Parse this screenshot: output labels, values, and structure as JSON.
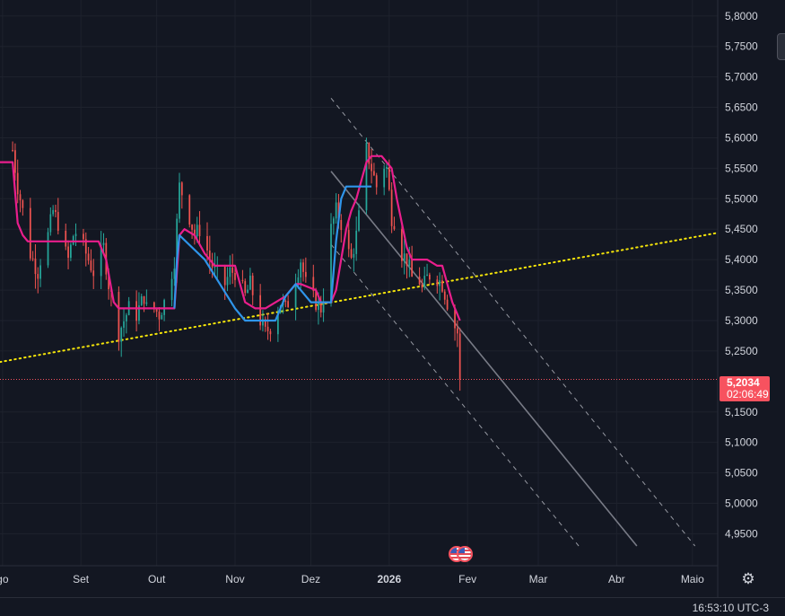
{
  "chart_data": {
    "type": "candlestick",
    "title": "",
    "y_axis_ticks": [
      "5,8000",
      "5,7500",
      "5,7000",
      "5,6500",
      "5,6000",
      "5,5500",
      "5,5000",
      "5,4500",
      "5,4000",
      "5,3500",
      "5,3000",
      "5,2500",
      "5,1500",
      "5,1000",
      "5,0500",
      "5,0000",
      "4,9500"
    ],
    "ylim": [
      4.93,
      5.81
    ],
    "x_axis_ticks": [
      {
        "label": "go",
        "day": -4
      },
      {
        "label": "Set",
        "day": 27
      },
      {
        "label": "Out",
        "day": 57
      },
      {
        "label": "Nov",
        "day": 88
      },
      {
        "label": "Dez",
        "day": 118
      },
      {
        "label": "2026",
        "day": 149
      },
      {
        "label": "Fev",
        "day": 180
      },
      {
        "label": "Mar",
        "day": 208
      },
      {
        "label": "Abr",
        "day": 239
      },
      {
        "label": "Maio",
        "day": 269
      }
    ],
    "xlim": [
      -5,
      279
    ],
    "current_price": {
      "value": 5.2034,
      "label": "5,2034",
      "countdown": "02:06:49"
    },
    "close_points": [
      [
        0,
        5.58
      ],
      [
        2,
        5.52
      ],
      [
        4,
        5.48
      ],
      [
        6,
        5.42
      ],
      [
        8,
        5.4
      ],
      [
        10,
        5.38
      ],
      [
        12,
        5.42
      ],
      [
        14,
        5.44
      ],
      [
        16,
        5.48
      ],
      [
        18,
        5.46
      ],
      [
        20,
        5.42
      ],
      [
        22,
        5.4
      ],
      [
        24,
        5.44
      ],
      [
        26,
        5.45
      ],
      [
        28,
        5.42
      ],
      [
        30,
        5.4
      ],
      [
        32,
        5.38
      ],
      [
        34,
        5.4
      ],
      [
        36,
        5.42
      ],
      [
        38,
        5.36
      ],
      [
        40,
        5.32
      ],
      [
        42,
        5.28
      ],
      [
        44,
        5.3
      ],
      [
        46,
        5.32
      ],
      [
        48,
        5.3
      ],
      [
        50,
        5.32
      ],
      [
        52,
        5.34
      ],
      [
        54,
        5.3
      ],
      [
        56,
        5.32
      ],
      [
        58,
        5.31
      ],
      [
        60,
        5.33
      ],
      [
        62,
        5.36
      ],
      [
        64,
        5.4
      ],
      [
        66,
        5.52
      ],
      [
        68,
        5.5
      ],
      [
        70,
        5.47
      ],
      [
        72,
        5.44
      ],
      [
        74,
        5.45
      ],
      [
        76,
        5.43
      ],
      [
        78,
        5.4
      ],
      [
        80,
        5.38
      ],
      [
        82,
        5.37
      ],
      [
        84,
        5.36
      ],
      [
        86,
        5.38
      ],
      [
        88,
        5.38
      ],
      [
        90,
        5.36
      ],
      [
        92,
        5.34
      ],
      [
        94,
        5.36
      ],
      [
        96,
        5.33
      ],
      [
        98,
        5.3
      ],
      [
        100,
        5.28
      ],
      [
        102,
        5.29
      ],
      [
        104,
        5.31
      ],
      [
        106,
        5.33
      ],
      [
        108,
        5.32
      ],
      [
        110,
        5.34
      ],
      [
        112,
        5.37
      ],
      [
        114,
        5.4
      ],
      [
        116,
        5.36
      ],
      [
        118,
        5.34
      ],
      [
        120,
        5.33
      ],
      [
        122,
        5.32
      ],
      [
        124,
        5.36
      ],
      [
        126,
        5.45
      ],
      [
        128,
        5.48
      ],
      [
        130,
        5.46
      ],
      [
        132,
        5.42
      ],
      [
        134,
        5.4
      ],
      [
        136,
        5.44
      ],
      [
        138,
        5.5
      ],
      [
        140,
        5.58
      ],
      [
        142,
        5.55
      ],
      [
        144,
        5.52
      ],
      [
        146,
        5.56
      ],
      [
        148,
        5.55
      ],
      [
        150,
        5.47
      ],
      [
        152,
        5.46
      ],
      [
        154,
        5.41
      ],
      [
        156,
        5.4
      ],
      [
        158,
        5.37
      ],
      [
        160,
        5.38
      ],
      [
        162,
        5.35
      ],
      [
        164,
        5.37
      ],
      [
        166,
        5.38
      ],
      [
        168,
        5.37
      ],
      [
        170,
        5.36
      ],
      [
        172,
        5.33
      ],
      [
        174,
        5.3
      ],
      [
        176,
        5.28
      ],
      [
        177,
        5.2034
      ]
    ],
    "series": [
      {
        "name": "",
        "color": "#e91e8c",
        "role": "trailing-stop-upper",
        "points": [
          [
            -5,
            5.56
          ],
          [
            0,
            5.56
          ],
          [
            2,
            5.46
          ],
          [
            4,
            5.44
          ],
          [
            6,
            5.43
          ],
          [
            10,
            5.43
          ],
          [
            26,
            5.43
          ],
          [
            34,
            5.43
          ],
          [
            37,
            5.4
          ],
          [
            40,
            5.33
          ],
          [
            42,
            5.32
          ],
          [
            60,
            5.32
          ],
          [
            64,
            5.32
          ],
          [
            66,
            5.44
          ],
          [
            68,
            5.45
          ],
          [
            72,
            5.44
          ],
          [
            76,
            5.41
          ],
          [
            80,
            5.39
          ],
          [
            88,
            5.39
          ],
          [
            90,
            5.36
          ],
          [
            92,
            5.33
          ],
          [
            96,
            5.32
          ],
          [
            100,
            5.32
          ],
          [
            108,
            5.34
          ],
          [
            112,
            5.36
          ],
          [
            114,
            5.36
          ],
          [
            120,
            5.35
          ],
          [
            122,
            5.33
          ],
          [
            126,
            5.33
          ],
          [
            128,
            5.35
          ],
          [
            132,
            5.45
          ],
          [
            134,
            5.48
          ],
          [
            136,
            5.5
          ],
          [
            138,
            5.53
          ],
          [
            140,
            5.56
          ],
          [
            142,
            5.57
          ],
          [
            146,
            5.57
          ],
          [
            150,
            5.55
          ],
          [
            152,
            5.5
          ],
          [
            154,
            5.46
          ],
          [
            156,
            5.42
          ],
          [
            158,
            5.4
          ],
          [
            164,
            5.4
          ],
          [
            168,
            5.39
          ],
          [
            170,
            5.39
          ],
          [
            172,
            5.36
          ],
          [
            174,
            5.33
          ],
          [
            176,
            5.31
          ],
          [
            177,
            5.3
          ]
        ]
      },
      {
        "name": "",
        "color": "#2f95ea",
        "role": "trailing-stop-lower",
        "points": [
          [
            64,
            5.32
          ],
          [
            65,
            5.4
          ],
          [
            66,
            5.44
          ],
          [
            76,
            5.4
          ],
          [
            88,
            5.32
          ],
          [
            92,
            5.3
          ],
          [
            104,
            5.3
          ],
          [
            108,
            5.34
          ],
          [
            112,
            5.36
          ],
          [
            118,
            5.33
          ],
          [
            126,
            5.33
          ],
          [
            128,
            5.43
          ],
          [
            130,
            5.5
          ],
          [
            132,
            5.52
          ],
          [
            140,
            5.52
          ],
          [
            142,
            5.52
          ]
        ]
      }
    ],
    "trendline": {
      "color": "#f5e50a",
      "style": "dotted",
      "points": [
        [
          -5,
          5.232
        ],
        [
          279,
          5.444
        ]
      ]
    },
    "channel": {
      "center": {
        "color": "#787b86",
        "points": [
          [
            126,
            5.545
          ],
          [
            247,
            4.93
          ]
        ]
      },
      "upper": {
        "color": "#9598a1",
        "style": "dashed",
        "points": [
          [
            126,
            5.665
          ],
          [
            270,
            4.93
          ]
        ]
      },
      "lower": {
        "color": "#9598a1",
        "style": "dashed",
        "points": [
          [
            126,
            5.425
          ],
          [
            224,
            4.93
          ]
        ]
      }
    },
    "up_color": "#26a69a",
    "down_color": "#ef5350",
    "price_line_color": "#f7525f",
    "grid": true,
    "legend": false
  },
  "footer": {
    "clock": "16:53:10 UTC-3"
  },
  "icons": {
    "settings": "gear-icon",
    "event": "us-flag-icon"
  }
}
